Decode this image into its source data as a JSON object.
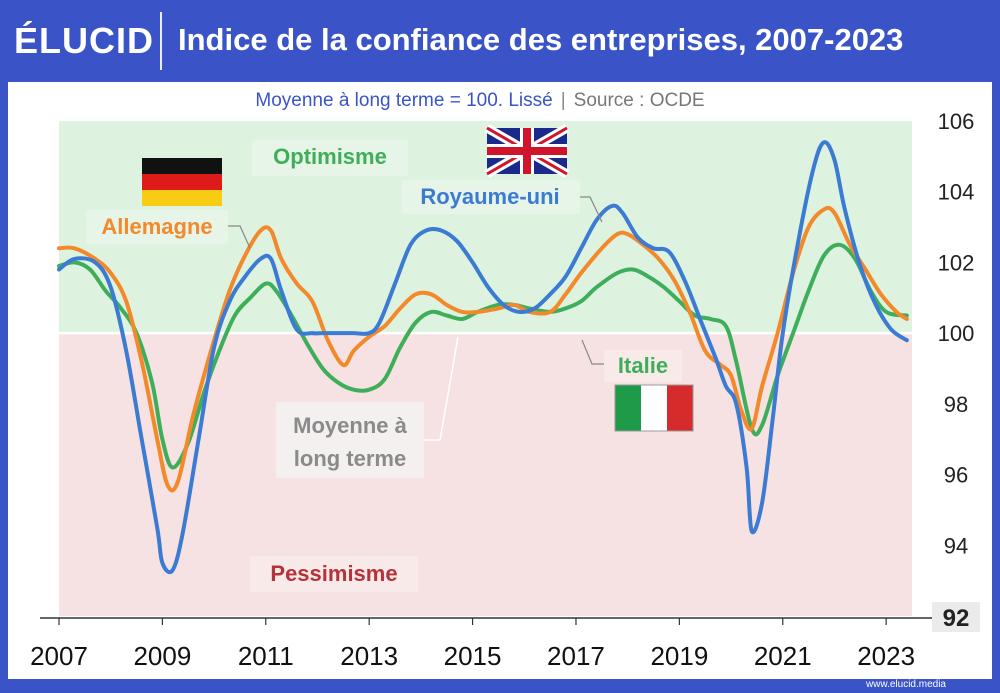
{
  "header": {
    "logo": "ÉLUCID",
    "title": "Indice de la confiance des entreprises, 2007-2023"
  },
  "subtitle": {
    "main": "Moyenne à long terme = 100. Lissé",
    "separator": "|",
    "source": "Source : OCDE"
  },
  "footer": {
    "url": "www.elucid.media"
  },
  "colors": {
    "germany": "#f2892b",
    "uk": "#3b7bd4",
    "italy": "#3fae5a",
    "optimism_bg": "#def2e0",
    "pessimism_bg": "#f6e2e2",
    "brand": "#3a54c8"
  },
  "chart_data": {
    "type": "line",
    "title": "Indice de la confiance des entreprises, 2007-2023",
    "subtitle": "Moyenne à long terme = 100. Lissé",
    "source": "Source : OCDE",
    "xlim": [
      2007,
      2023.5
    ],
    "ylim": [
      92,
      106
    ],
    "y_axis_position": "right",
    "x_ticks": [
      2007,
      2009,
      2011,
      2013,
      2015,
      2017,
      2019,
      2021,
      2023
    ],
    "y_ticks": [
      92,
      94,
      96,
      98,
      100,
      102,
      104,
      106
    ],
    "reference_line": {
      "value": 100,
      "label": "Moyenne à long terme"
    },
    "zones": [
      {
        "label": "Optimisme",
        "from": 100,
        "to": 106
      },
      {
        "label": "Pessimisme",
        "from": 92,
        "to": 100
      }
    ],
    "series": [
      {
        "name": "Allemagne",
        "key": "germany",
        "x": [
          2007.0,
          2007.3,
          2007.7,
          2008.0,
          2008.3,
          2008.6,
          2008.9,
          2009.1,
          2009.3,
          2009.6,
          2010.0,
          2010.3,
          2010.6,
          2010.9,
          2011.1,
          2011.3,
          2011.6,
          2011.9,
          2012.2,
          2012.5,
          2012.7,
          2013.0,
          2013.3,
          2013.6,
          2013.9,
          2014.2,
          2014.5,
          2014.8,
          2015.1,
          2015.5,
          2015.8,
          2016.1,
          2016.5,
          2016.8,
          2017.1,
          2017.5,
          2017.8,
          2018.0,
          2018.3,
          2018.6,
          2018.9,
          2019.2,
          2019.5,
          2019.8,
          2020.0,
          2020.2,
          2020.4,
          2020.6,
          2020.9,
          2021.2,
          2021.5,
          2021.8,
          2022.0,
          2022.3,
          2022.6,
          2022.9,
          2023.2,
          2023.4
        ],
        "values": [
          102.4,
          102.4,
          102.1,
          101.7,
          100.9,
          99.2,
          97.0,
          95.7,
          95.8,
          97.7,
          99.8,
          101.2,
          102.2,
          102.9,
          102.9,
          102.1,
          101.4,
          100.9,
          99.8,
          99.1,
          99.5,
          99.9,
          100.2,
          100.7,
          101.1,
          101.1,
          100.8,
          100.6,
          100.6,
          100.7,
          100.8,
          100.6,
          100.6,
          101.1,
          101.7,
          102.4,
          102.8,
          102.8,
          102.5,
          102.1,
          101.5,
          100.6,
          99.5,
          99.1,
          98.8,
          97.8,
          97.3,
          98.5,
          100.0,
          101.7,
          103.0,
          103.5,
          103.4,
          102.5,
          101.8,
          101.1,
          100.6,
          100.4
        ]
      },
      {
        "name": "Royaume-uni",
        "key": "uk",
        "x": [
          2007.0,
          2007.3,
          2007.7,
          2008.0,
          2008.3,
          2008.6,
          2008.9,
          2009.0,
          2009.2,
          2009.4,
          2009.7,
          2010.0,
          2010.3,
          2010.6,
          2010.9,
          2011.1,
          2011.3,
          2011.6,
          2011.9,
          2012.1,
          2012.4,
          2012.7,
          2013.0,
          2013.2,
          2013.5,
          2013.8,
          2014.1,
          2014.4,
          2014.7,
          2015.0,
          2015.3,
          2015.6,
          2015.9,
          2016.2,
          2016.5,
          2016.8,
          2017.1,
          2017.4,
          2017.7,
          2017.9,
          2018.2,
          2018.5,
          2018.8,
          2019.1,
          2019.4,
          2019.7,
          2019.9,
          2020.1,
          2020.3,
          2020.4,
          2020.6,
          2020.8,
          2021.0,
          2021.3,
          2021.6,
          2021.8,
          2022.0,
          2022.2,
          2022.5,
          2022.8,
          2023.1,
          2023.4
        ],
        "values": [
          101.8,
          102.1,
          102.0,
          101.3,
          99.5,
          97.0,
          94.5,
          93.5,
          93.3,
          94.4,
          97.0,
          99.6,
          100.9,
          101.6,
          102.1,
          102.1,
          101.2,
          100.1,
          100.0,
          100.0,
          100.0,
          100.0,
          100.0,
          100.3,
          101.4,
          102.5,
          102.9,
          102.9,
          102.6,
          102.0,
          101.3,
          100.8,
          100.6,
          100.7,
          101.1,
          101.6,
          102.4,
          103.2,
          103.6,
          103.4,
          102.7,
          102.4,
          102.3,
          101.5,
          100.4,
          99.3,
          98.5,
          98.0,
          96.2,
          94.4,
          95.2,
          97.5,
          100.0,
          102.6,
          104.7,
          105.4,
          104.9,
          103.5,
          101.9,
          100.8,
          100.1,
          99.8
        ]
      },
      {
        "name": "Italie",
        "key": "italy",
        "x": [
          2007.0,
          2007.3,
          2007.6,
          2007.9,
          2008.2,
          2008.5,
          2008.8,
          2009.0,
          2009.2,
          2009.5,
          2009.8,
          2010.1,
          2010.4,
          2010.7,
          2011.0,
          2011.2,
          2011.5,
          2011.8,
          2012.1,
          2012.4,
          2012.7,
          2013.0,
          2013.3,
          2013.6,
          2013.9,
          2014.2,
          2014.5,
          2014.8,
          2015.1,
          2015.5,
          2015.8,
          2016.1,
          2016.5,
          2016.8,
          2017.1,
          2017.4,
          2017.8,
          2018.1,
          2018.4,
          2018.7,
          2019.0,
          2019.3,
          2019.6,
          2019.9,
          2020.1,
          2020.4,
          2020.6,
          2020.9,
          2021.2,
          2021.5,
          2021.8,
          2022.1,
          2022.4,
          2022.7,
          2023.0,
          2023.4
        ],
        "values": [
          101.9,
          102.0,
          101.8,
          101.2,
          100.7,
          100.0,
          98.6,
          97.0,
          96.2,
          96.9,
          98.3,
          99.5,
          100.5,
          101.0,
          101.4,
          101.2,
          100.5,
          99.7,
          99.0,
          98.6,
          98.4,
          98.4,
          98.7,
          99.6,
          100.3,
          100.6,
          100.5,
          100.4,
          100.6,
          100.8,
          100.8,
          100.7,
          100.6,
          100.7,
          100.9,
          101.3,
          101.7,
          101.8,
          101.6,
          101.3,
          100.9,
          100.5,
          100.4,
          100.2,
          99.2,
          97.3,
          97.4,
          98.8,
          100.0,
          101.2,
          102.2,
          102.5,
          102.1,
          101.2,
          100.6,
          100.5
        ]
      }
    ]
  },
  "annotations": {
    "optimism": "Optimisme",
    "pessimism": "Pessimisme",
    "germany": "Allemagne",
    "uk": "Royaume-uni",
    "italy": "Italie",
    "long_term_line1": "Moyenne à",
    "long_term_line2": "long terme"
  },
  "flags": {
    "germany": "germany-flag-icon",
    "uk": "uk-flag-icon",
    "italy": "italy-flag-icon"
  }
}
